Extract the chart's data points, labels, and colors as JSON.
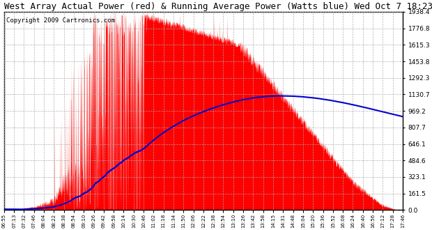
{
  "title": "West Array Actual Power (red) & Running Average Power (Watts blue) Wed Oct 7 18:23",
  "copyright": "Copyright 2009 Cartronics.com",
  "yticks": [
    0.0,
    161.5,
    323.1,
    484.6,
    646.1,
    807.7,
    969.2,
    1130.7,
    1292.3,
    1453.8,
    1615.3,
    1776.8,
    1938.4
  ],
  "ymax": 1938.4,
  "bar_color": "#FF0000",
  "avg_color": "#0000CC",
  "background_color": "#FFFFFF",
  "grid_color": "#AAAAAA",
  "title_fontsize": 9,
  "copyright_fontsize": 6.5,
  "xtick_labels": [
    "06:55",
    "07:13",
    "07:32",
    "07:46",
    "08:04",
    "08:22",
    "08:38",
    "08:54",
    "09:10",
    "09:26",
    "09:42",
    "09:58",
    "10:14",
    "10:30",
    "10:46",
    "11:02",
    "11:18",
    "11:34",
    "11:50",
    "12:06",
    "12:22",
    "12:38",
    "12:54",
    "13:10",
    "13:26",
    "13:42",
    "13:58",
    "14:15",
    "14:31",
    "14:48",
    "15:04",
    "15:20",
    "15:36",
    "15:52",
    "16:08",
    "16:24",
    "16:40",
    "16:56",
    "17:12",
    "17:28",
    "17:46"
  ],
  "n_points": 2460,
  "total_minutes": 651
}
